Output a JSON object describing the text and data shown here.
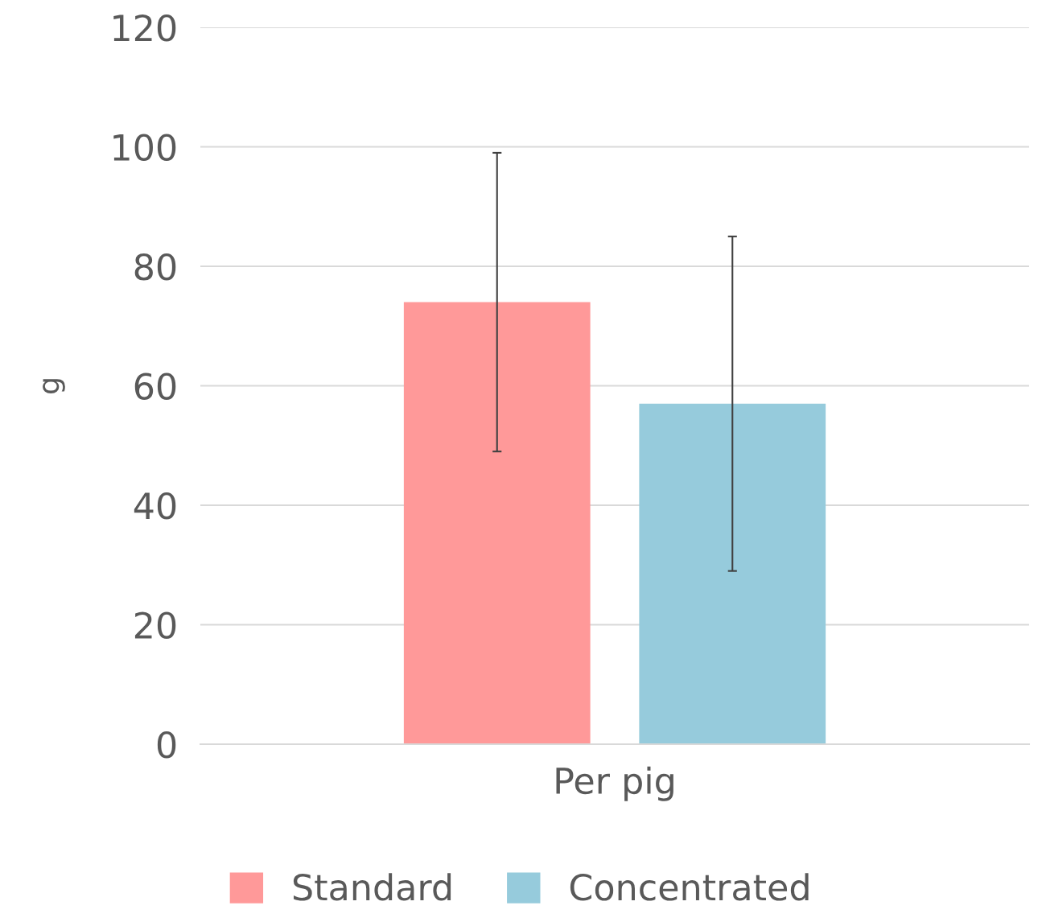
{
  "chart_data": {
    "type": "bar",
    "ylabel": "g",
    "categories": [
      "Per pig"
    ],
    "series": [
      {
        "name": "Standard",
        "color": "#ff9999",
        "values": [
          74
        ],
        "errors": [
          25
        ]
      },
      {
        "name": "Concentrated",
        "color": "#96cbdc",
        "values": [
          57
        ],
        "errors": [
          28
        ]
      }
    ],
    "ylim": [
      0,
      120
    ],
    "yticks": [
      0,
      20,
      40,
      60,
      80,
      100,
      120
    ],
    "grid": "y",
    "legend": "bottom"
  }
}
